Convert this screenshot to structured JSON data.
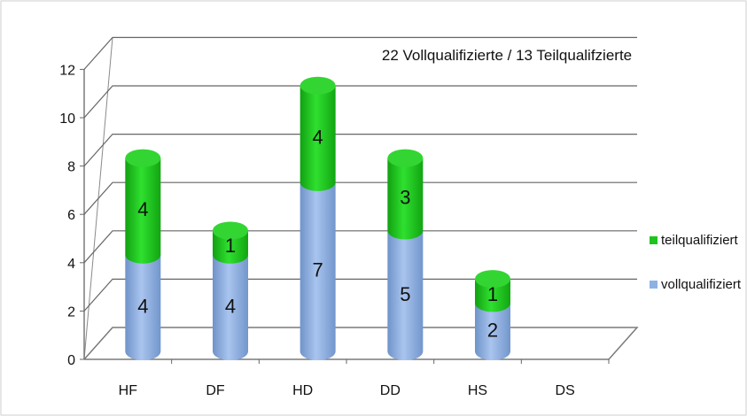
{
  "chart_data": {
    "type": "bar",
    "stacked": true,
    "title": "22 Vollqualifizierte / 13 Teilqualifzierte",
    "categories": [
      "HF",
      "DF",
      "HD",
      "DD",
      "HS",
      "DS"
    ],
    "series": [
      {
        "name": "vollqualifiziert",
        "values": [
          4,
          4,
          7,
          5,
          2,
          0
        ],
        "color": "#8eb1e3"
      },
      {
        "name": "teilqualifiziert",
        "values": [
          4,
          1,
          4,
          3,
          1,
          0
        ],
        "color": "#1fc41f"
      }
    ],
    "y_ticks": [
      "0",
      "2",
      "4",
      "6",
      "8",
      "10",
      "12"
    ],
    "ylim": [
      0,
      12
    ],
    "grid": true,
    "legend_position": "right"
  }
}
